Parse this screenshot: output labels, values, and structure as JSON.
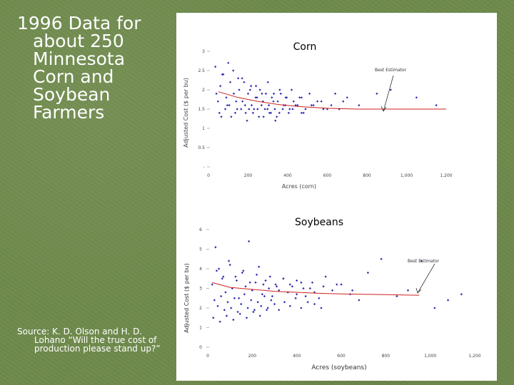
{
  "slide": {
    "title_lines": [
      "1996 Data for",
      "about 250",
      "Minnesota",
      "Corn and",
      "Soybean",
      "Farmers"
    ],
    "source_lines": [
      "Source: K. D. Olson and H. D.",
      "Lohano “Will the true cost of",
      "production please stand up?”"
    ]
  },
  "chart_data": [
    {
      "type": "scatter",
      "title": "Corn",
      "xlabel": "Acres (corn)",
      "ylabel": "Adjusted Cost ($ per bu)",
      "xlim": [
        0,
        1200
      ],
      "ylim": [
        0,
        3
      ],
      "x_ticks": [
        "0",
        "200",
        "400",
        "600",
        "800",
        "1,000",
        "1,200"
      ],
      "y_ticks": [
        "-",
        "0.5",
        "1",
        "1.5",
        "2",
        "2.5",
        "3"
      ],
      "annotation": "Best Estimator",
      "marker_color": "#2a2ab0",
      "line_color": "#d02020",
      "series": [
        {
          "type": "points",
          "x": [
            40,
            60,
            75,
            90,
            110,
            125,
            140,
            155,
            170,
            185,
            200,
            215,
            230,
            245,
            260,
            275,
            290,
            305,
            320,
            335,
            350,
            365,
            380,
            395,
            410,
            430,
            450,
            470,
            490,
            520,
            550,
            580,
            620,
            660,
            700,
            760,
            850,
            920,
            1050,
            1150,
            55,
            85,
            115,
            135,
            165,
            195,
            225,
            255,
            285,
            315,
            345,
            375,
            405,
            440,
            480,
            35,
            70,
            100,
            150,
            180,
            210,
            240,
            270,
            300,
            330,
            360,
            390,
            420,
            460,
            510,
            570,
            640,
            48,
            95,
            128,
            172,
            205,
            238,
            268,
            298,
            328,
            358,
            388,
            425,
            470,
            530,
            600,
            680,
            65,
            105,
            145,
            188,
            218,
            248,
            278,
            308,
            338
          ],
          "y": [
            1.9,
            2.1,
            2.4,
            1.8,
            2.2,
            2.5,
            1.7,
            2.0,
            2.3,
            1.6,
            1.9,
            2.1,
            1.5,
            1.8,
            2.0,
            1.7,
            1.9,
            1.6,
            1.8,
            1.5,
            1.7,
            1.9,
            1.6,
            1.8,
            1.5,
            1.7,
            1.6,
            1.8,
            1.5,
            1.6,
            1.7,
            1.5,
            1.6,
            1.5,
            1.8,
            1.6,
            1.9,
            2.0,
            1.8,
            1.6,
            1.4,
            1.5,
            1.3,
            1.4,
            1.5,
            1.2,
            1.4,
            1.3,
            1.5,
            1.4,
            1.3,
            1.5,
            1.4,
            1.6,
            1.4,
            2.6,
            2.4,
            2.7,
            2.3,
            2.2,
            2.0,
            2.1,
            1.9,
            2.2,
            1.9,
            2.0,
            1.8,
            2.0,
            1.8,
            1.9,
            1.7,
            1.9,
            1.7,
            1.6,
            1.9,
            1.7,
            1.5,
            1.8,
            1.6,
            1.5,
            1.7,
            1.4,
            1.6,
            1.5,
            1.4,
            1.6,
            1.5,
            1.7,
            1.3,
            1.6,
            1.5,
            1.4,
            1.6,
            1.5,
            1.3,
            1.4,
            1.2
          ]
        },
        {
          "type": "line",
          "x": [
            50,
            150,
            250,
            350,
            450,
            600,
            750,
            900,
            1050,
            1200
          ],
          "y": [
            1.95,
            1.8,
            1.7,
            1.62,
            1.57,
            1.52,
            1.5,
            1.5,
            1.5,
            1.5
          ]
        }
      ]
    },
    {
      "type": "scatter",
      "title": "Soybeans",
      "xlabel": "Acres (soybeans)",
      "ylabel": "Adjusted Cost ($ per bu)",
      "xlim": [
        0,
        1200
      ],
      "ylim": [
        0,
        6
      ],
      "x_ticks": [
        "0",
        "200",
        "400",
        "600",
        "800",
        "1,000",
        "1,200"
      ],
      "y_ticks": [
        "0",
        "1",
        "2",
        "3",
        "4",
        "5",
        "6"
      ],
      "annotation": "Best Estimator",
      "marker_color": "#2a2ab0",
      "line_color": "#d02020",
      "series": [
        {
          "type": "points",
          "x": [
            20,
            35,
            50,
            65,
            80,
            95,
            110,
            125,
            140,
            155,
            170,
            185,
            200,
            215,
            230,
            245,
            260,
            275,
            290,
            305,
            320,
            340,
            360,
            380,
            400,
            420,
            440,
            460,
            480,
            500,
            530,
            560,
            600,
            640,
            680,
            720,
            780,
            850,
            900,
            960,
            1020,
            1080,
            1140,
            30,
            45,
            60,
            75,
            90,
            105,
            120,
            135,
            150,
            165,
            180,
            195,
            210,
            225,
            240,
            255,
            270,
            285,
            300,
            320,
            345,
            370,
            395,
            420,
            450,
            480,
            510,
            40,
            70,
            100,
            130,
            160,
            190,
            220,
            250,
            280,
            310,
            340,
            370,
            400,
            430,
            470,
            520,
            580,
            650,
            25,
            55,
            85,
            115,
            145,
            175,
            205,
            235,
            265
          ],
          "y": [
            3.2,
            5.1,
            4.0,
            3.5,
            2.8,
            4.4,
            3.0,
            3.6,
            2.5,
            3.8,
            3.1,
            5.4,
            2.9,
            3.3,
            4.1,
            2.7,
            3.4,
            3.0,
            2.6,
            3.2,
            2.9,
            3.5,
            2.8,
            3.1,
            2.7,
            3.3,
            2.6,
            3.0,
            2.8,
            2.5,
            3.6,
            2.9,
            3.2,
            2.7,
            2.4,
            3.8,
            4.5,
            2.6,
            2.9,
            4.4,
            2.0,
            2.4,
            2.7,
            2.4,
            2.1,
            2.6,
            1.9,
            2.3,
            2.0,
            2.5,
            1.8,
            2.2,
            2.7,
            2.0,
            2.4,
            1.9,
            2.3,
            2.1,
            2.6,
            2.0,
            2.4,
            2.2,
            1.9,
            2.3,
            2.1,
            2.5,
            2.0,
            2.3,
            2.2,
            2.0,
            3.9,
            3.6,
            4.2,
            3.4,
            3.9,
            3.3,
            3.7,
            3.2,
            3.6,
            3.1,
            3.5,
            3.2,
            3.4,
            3.0,
            3.3,
            3.1,
            3.2,
            2.9,
            1.5,
            1.3,
            1.6,
            1.4,
            1.7,
            1.5,
            1.8,
            1.6,
            1.9
          ]
        },
        {
          "type": "line",
          "x": [
            20,
            100,
            200,
            300,
            400,
            500,
            600,
            700,
            800,
            900,
            950
          ],
          "y": [
            3.3,
            3.05,
            2.95,
            2.85,
            2.8,
            2.75,
            2.72,
            2.7,
            2.68,
            2.66,
            2.65
          ]
        }
      ]
    }
  ]
}
